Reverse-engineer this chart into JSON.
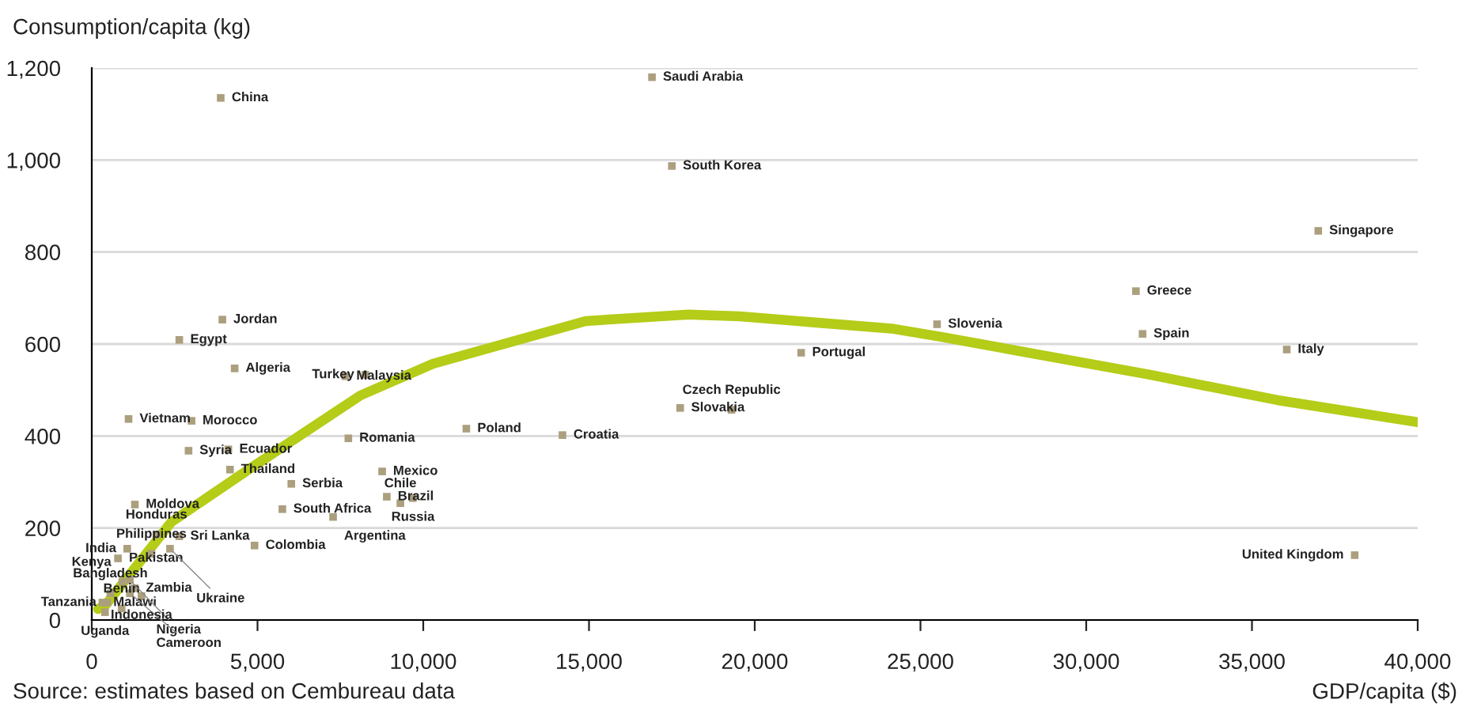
{
  "chart_data": {
    "type": "scatter",
    "xlabel": "GDP/capita ($)",
    "ylabel": "Consumption/capita (kg)",
    "xlim": [
      0,
      40000
    ],
    "ylim": [
      0,
      1200
    ],
    "xticks": [
      {
        "value": 0,
        "label": "0"
      },
      {
        "value": 5000,
        "label": "5,000"
      },
      {
        "value": 10000,
        "label": "10,000"
      },
      {
        "value": 15000,
        "label": "15,000"
      },
      {
        "value": 20000,
        "label": "20,000"
      },
      {
        "value": 25000,
        "label": "25,000"
      },
      {
        "value": 30000,
        "label": "30,000"
      },
      {
        "value": 35000,
        "label": "35,000"
      },
      {
        "value": 40000,
        "label": "40,000"
      }
    ],
    "yticks": [
      {
        "value": 0,
        "label": "0"
      },
      {
        "value": 200,
        "label": "200"
      },
      {
        "value": 400,
        "label": "400"
      },
      {
        "value": 600,
        "label": "600"
      },
      {
        "value": 800,
        "label": "800"
      },
      {
        "value": 1000,
        "label": "1,000"
      },
      {
        "value": 1200,
        "label": "1,200"
      }
    ],
    "grid": "y",
    "legend": false,
    "series": [
      {
        "marker": "square",
        "color": "#ab9f7e",
        "x": [
          3890,
          16900,
          17500,
          37000,
          31500,
          31700,
          25500,
          36050,
          21400,
          17750,
          19300,
          11300,
          14200,
          38100,
          3940,
          2640,
          4310,
          7650,
          8250,
          1110,
          3010,
          2920,
          4120,
          4170,
          7740,
          8760,
          8900,
          9310,
          9690,
          6020,
          5750,
          7280,
          4910,
          1300,
          1950,
          2640,
          1070,
          2360,
          1800,
          790,
          920,
          1150,
          1300,
          560,
          1150,
          470,
          320,
          400,
          900,
          1500
        ],
        "values": [
          1135,
          1180,
          987,
          846,
          715,
          622,
          643,
          588,
          581,
          461,
          457,
          416,
          402,
          141,
          653,
          609,
          547,
          530,
          533,
          437,
          433,
          368,
          371,
          327,
          395,
          323,
          268,
          254,
          265,
          296,
          241,
          224,
          162,
          251,
          186,
          182,
          155,
          155,
          144,
          134,
          83,
          87,
          69,
          58,
          58,
          38,
          38,
          17,
          25,
          52
        ]
      },
      {
        "type": "line",
        "color": "#b5cc18",
        "x": [
          190,
          400,
          2400,
          4730,
          8100,
          10290,
          14900,
          18000,
          19550,
          24190,
          25580,
          31930,
          35770,
          40000
        ],
        "values": [
          24,
          31,
          213,
          327,
          488,
          557,
          650,
          664,
          660,
          633,
          616,
          533,
          478,
          430
        ]
      }
    ],
    "annotations": [
      {
        "text": "China",
        "x": 3890,
        "y": 1135
      },
      {
        "text": "Saudi Arabia",
        "x": 16900,
        "y": 1180
      },
      {
        "text": "South Korea",
        "x": 17500,
        "y": 987
      },
      {
        "text": "Singapore",
        "x": 37000,
        "y": 846
      },
      {
        "text": "Greece",
        "x": 31500,
        "y": 715
      },
      {
        "text": "Spain",
        "x": 31700,
        "y": 622
      },
      {
        "text": "Slovenia",
        "x": 25500,
        "y": 643
      },
      {
        "text": "Italy",
        "x": 36050,
        "y": 588
      },
      {
        "text": "Portugal",
        "x": 21400,
        "y": 581
      },
      {
        "text": "Slovakia",
        "x": 17750,
        "y": 461
      },
      {
        "text": "Czech Republic",
        "x": 19300,
        "y": 457
      },
      {
        "text": "Poland",
        "x": 11300,
        "y": 416
      },
      {
        "text": "Croatia",
        "x": 14200,
        "y": 402
      },
      {
        "text": "United Kingdom",
        "x": 38100,
        "y": 141
      },
      {
        "text": "Jordan",
        "x": 3940,
        "y": 653
      },
      {
        "text": "Egypt",
        "x": 2640,
        "y": 609
      },
      {
        "text": "Algeria",
        "x": 4310,
        "y": 547
      },
      {
        "text": "Malaysia",
        "x": 7650,
        "y": 530
      },
      {
        "text": "Turkey",
        "x": 8250,
        "y": 533
      },
      {
        "text": "Vietnam",
        "x": 1110,
        "y": 437
      },
      {
        "text": "Morocco",
        "x": 3010,
        "y": 433
      },
      {
        "text": "Syria",
        "x": 2920,
        "y": 368
      },
      {
        "text": "Ecuador",
        "x": 4120,
        "y": 371
      },
      {
        "text": "Thailand",
        "x": 4170,
        "y": 327
      },
      {
        "text": "Romania",
        "x": 7740,
        "y": 395
      },
      {
        "text": "Mexico",
        "x": 8760,
        "y": 323
      },
      {
        "text": "Brazil",
        "x": 8900,
        "y": 268
      },
      {
        "text": "Chile",
        "x": 9310,
        "y": 254
      },
      {
        "text": "Russia",
        "x": 9690,
        "y": 265
      },
      {
        "text": "Serbia",
        "x": 6020,
        "y": 296
      },
      {
        "text": "South Africa",
        "x": 5750,
        "y": 241
      },
      {
        "text": "Argentina",
        "x": 7280,
        "y": 224
      },
      {
        "text": "Colombia",
        "x": 4910,
        "y": 162
      },
      {
        "text": "Moldova",
        "x": 1300,
        "y": 251
      },
      {
        "text": "Honduras",
        "x": 1950,
        "y": 186
      },
      {
        "text": "Sri Lanka",
        "x": 2640,
        "y": 182
      },
      {
        "text": "India",
        "x": 1070,
        "y": 155
      },
      {
        "text": "Ukraine",
        "x": 2360,
        "y": 155
      },
      {
        "text": "Philippines",
        "x": 1800,
        "y": 144
      },
      {
        "text": "Pakistan",
        "x": 790,
        "y": 134
      },
      {
        "text": "Kenya",
        "x": 920,
        "y": 83
      },
      {
        "text": "Nigeria",
        "x": 1150,
        "y": 87
      },
      {
        "text": "Zambia",
        "x": 1300,
        "y": 69
      },
      {
        "text": "Bangladesh",
        "x": 560,
        "y": 58
      },
      {
        "text": "Cameroon",
        "x": 1150,
        "y": 58
      },
      {
        "text": "Tanzania",
        "x": 470,
        "y": 38
      },
      {
        "text": "Malawi",
        "x": 320,
        "y": 38
      },
      {
        "text": "Uganda",
        "x": 400,
        "y": 17
      },
      {
        "text": "Benin",
        "x": 900,
        "y": 25
      },
      {
        "text": "Indonesia",
        "x": 1500,
        "y": 52
      },
      "Source: estimates based on Cembureau data"
    ]
  }
}
